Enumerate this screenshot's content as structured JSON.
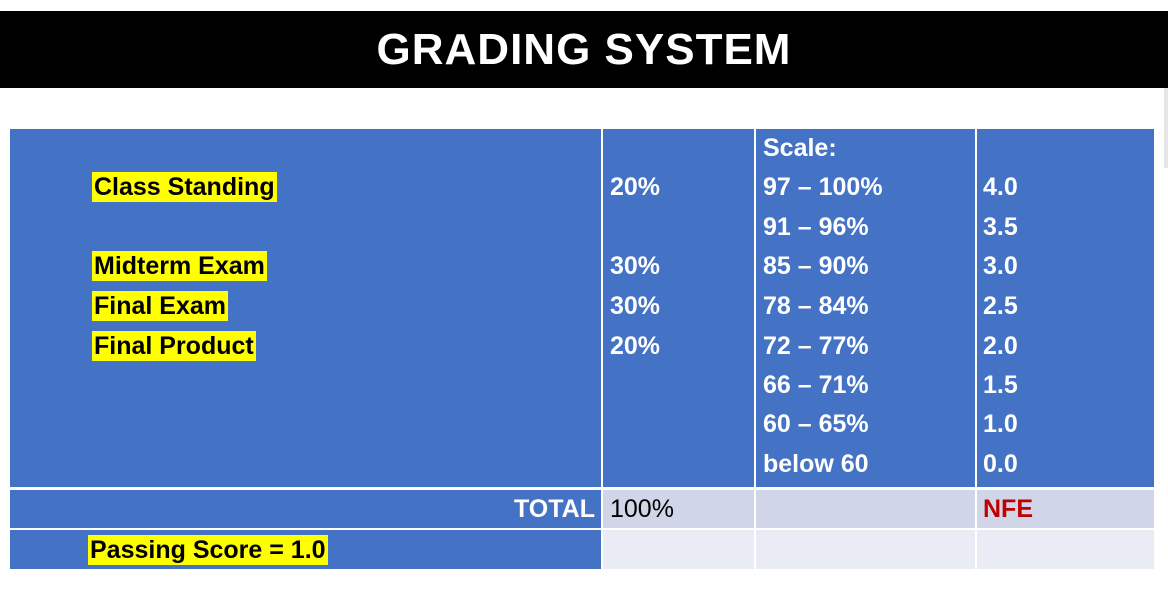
{
  "title": "GRADING SYSTEM",
  "components": [
    {
      "label": "Class Standing",
      "weight": "20%"
    },
    {
      "label": "Midterm Exam",
      "weight": "30%"
    },
    {
      "label": "Final Exam",
      "weight": "30%"
    },
    {
      "label": "Final Product",
      "weight": "20%"
    }
  ],
  "scale": {
    "header": "Scale:",
    "rows": [
      {
        "range": "97 – 100%",
        "grade": "4.0"
      },
      {
        "range": "91 – 96%",
        "grade": "3.5"
      },
      {
        "range": "85 – 90%",
        "grade": "3.0"
      },
      {
        "range": "78 – 84%",
        "grade": "2.5"
      },
      {
        "range": "72 – 77%",
        "grade": "2.0"
      },
      {
        "range": "66 – 71%",
        "grade": "1.5"
      },
      {
        "range": "60 – 65%",
        "grade": "1.0"
      },
      {
        "range": "below 60",
        "grade": "0.0"
      }
    ]
  },
  "total": {
    "label": "TOTAL",
    "value": "100%",
    "grade": "NFE"
  },
  "passing": "Passing Score = 1.0",
  "colors": {
    "header_bg": "#000000",
    "cell_blue": "#4472c4",
    "highlight": "#ffff00",
    "nfe": "#c00000"
  }
}
